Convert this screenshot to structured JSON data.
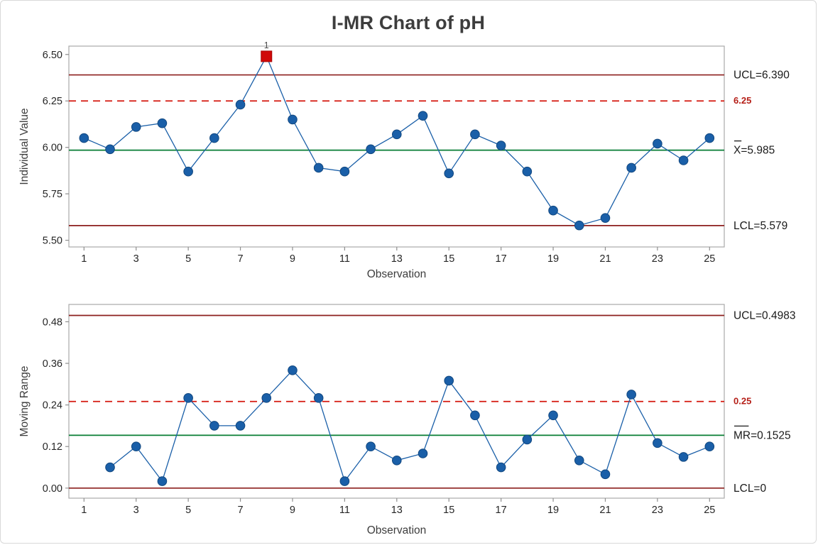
{
  "title": "I-MR Chart of pH",
  "colors": {
    "series": "#1a5fa8",
    "marker_stroke": "#11477f",
    "center_line": "#077d33",
    "limit_line": "#8c1f1d",
    "reference_line": "#d5180e",
    "reference_label": "#b51f18",
    "out_of_control": "#d00808",
    "flag_label": "#4d4d4d",
    "frame": "#a9a9a9",
    "tick": "#8f8f8f",
    "tick_label": "#262626",
    "axis_title": "#3d3d3d",
    "right_label": "#1a1a1a"
  },
  "chart_data": [
    {
      "type": "line",
      "id": "individuals",
      "ylabel": "Individual Value",
      "xlabel": "Observation",
      "x": [
        1,
        2,
        3,
        4,
        5,
        6,
        7,
        8,
        9,
        10,
        11,
        12,
        13,
        14,
        15,
        16,
        17,
        18,
        19,
        20,
        21,
        22,
        23,
        24,
        25
      ],
      "values": [
        6.05,
        5.99,
        6.11,
        6.13,
        5.87,
        6.05,
        6.23,
        6.49,
        6.15,
        5.89,
        5.87,
        5.99,
        6.07,
        6.17,
        5.86,
        6.07,
        6.01,
        5.87,
        5.66,
        5.58,
        5.62,
        5.89,
        6.02,
        5.93,
        6.05
      ],
      "ylim": [
        5.464,
        6.545
      ],
      "yticks": [
        5.5,
        5.75,
        6.0,
        6.25,
        6.5
      ],
      "ytick_labels": [
        "5.50",
        "5.75",
        "6.00",
        "6.25",
        "6.50"
      ],
      "xticks": [
        1,
        3,
        5,
        7,
        9,
        11,
        13,
        15,
        17,
        19,
        21,
        23,
        25
      ],
      "xtick_labels": [
        "1",
        "3",
        "5",
        "7",
        "9",
        "11",
        "13",
        "15",
        "17",
        "19",
        "21",
        "23",
        "25"
      ],
      "grid": false,
      "legend": "none",
      "ucl": {
        "value": 6.39,
        "label": "UCL=6.390"
      },
      "center": {
        "value": 5.985,
        "label_prefix": "X",
        "label_rest": "=5.985",
        "overbar": true
      },
      "lcl": {
        "value": 5.579,
        "label": "LCL=5.579"
      },
      "reference": {
        "value": 6.25,
        "label": "6.25"
      },
      "flags": [
        {
          "x": 8,
          "y": 6.49,
          "label": "1"
        }
      ]
    },
    {
      "type": "line",
      "id": "moving_range",
      "ylabel": "Moving Range",
      "xlabel": "Observation",
      "x": [
        2,
        3,
        4,
        5,
        6,
        7,
        8,
        9,
        10,
        11,
        12,
        13,
        14,
        15,
        16,
        17,
        18,
        19,
        20,
        21,
        22,
        23,
        24,
        25
      ],
      "values": [
        0.06,
        0.12,
        0.02,
        0.26,
        0.18,
        0.18,
        0.26,
        0.34,
        0.26,
        0.02,
        0.12,
        0.08,
        0.1,
        0.31,
        0.21,
        0.06,
        0.14,
        0.21,
        0.08,
        0.04,
        0.27,
        0.13,
        0.09,
        0.12
      ],
      "ylim": [
        -0.029,
        0.53
      ],
      "yticks": [
        0.0,
        0.12,
        0.24,
        0.36,
        0.48
      ],
      "ytick_labels": [
        "0.00",
        "0.12",
        "0.24",
        "0.36",
        "0.48"
      ],
      "xticks": [
        1,
        3,
        5,
        7,
        9,
        11,
        13,
        15,
        17,
        19,
        21,
        23,
        25
      ],
      "xtick_labels": [
        "1",
        "3",
        "5",
        "7",
        "9",
        "11",
        "13",
        "15",
        "17",
        "19",
        "21",
        "23",
        "25"
      ],
      "grid": false,
      "legend": "none",
      "ucl": {
        "value": 0.4983,
        "label": "UCL=0.4983"
      },
      "center": {
        "value": 0.1525,
        "label_prefix": "MR",
        "label_rest": "=0.1525",
        "overbar": true
      },
      "lcl": {
        "value": 0,
        "label": "LCL=0"
      },
      "reference": {
        "value": 0.25,
        "label": "0.25"
      },
      "flags": []
    }
  ]
}
